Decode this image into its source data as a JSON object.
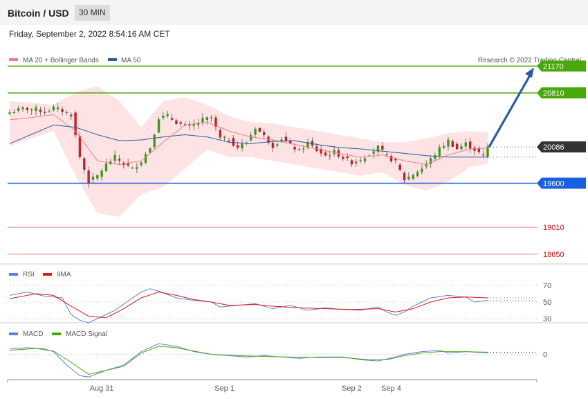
{
  "header": {
    "title": "Bitcoin / USD",
    "interval": "30 MIN",
    "datetime": "Friday, September 2, 2022 8:54:16 AM CET"
  },
  "credit": "Research © 2022 Trading Central",
  "chart_data": [
    {
      "type": "candlestick",
      "legend": [
        {
          "name": "MA 20 + Bollinger Bands",
          "color": "#f08080"
        },
        {
          "name": "MA 50",
          "color": "#2d5aa0"
        }
      ],
      "ylim": [
        18500,
        21350
      ],
      "last_price": "20086",
      "price_levels": [
        {
          "label": "21170",
          "value": 21170,
          "color": "#4aa90a",
          "badge": true
        },
        {
          "label": "20810",
          "value": 20810,
          "color": "#4aa90a",
          "badge": true
        },
        {
          "label": "20086",
          "value": 20086,
          "color": "#333333",
          "badge": true,
          "dotted": true
        },
        {
          "label": "19600",
          "value": 19600,
          "color": "#1a5fe0",
          "badge": true
        },
        {
          "label": "19010",
          "value": 19010,
          "color": "#f08080",
          "badge": false
        },
        {
          "label": "18650",
          "value": 18650,
          "color": "#f08080",
          "badge": false
        }
      ],
      "forecast_arrow": {
        "from": 20086,
        "to": 21170
      },
      "close_path": [
        [
          0,
          20550
        ],
        [
          3,
          20600
        ],
        [
          6,
          20590
        ],
        [
          8,
          20560
        ],
        [
          10,
          20610
        ],
        [
          12,
          20570
        ],
        [
          14,
          20520
        ],
        [
          16,
          19950
        ],
        [
          18,
          19620
        ],
        [
          20,
          19700
        ],
        [
          22,
          19850
        ],
        [
          24,
          19950
        ],
        [
          26,
          19860
        ],
        [
          28,
          19790
        ],
        [
          30,
          19900
        ],
        [
          32,
          20080
        ],
        [
          34,
          20480
        ],
        [
          36,
          20500
        ],
        [
          38,
          20420
        ],
        [
          40,
          20360
        ],
        [
          42,
          20380
        ],
        [
          44,
          20450
        ],
        [
          46,
          20480
        ],
        [
          48,
          20200
        ],
        [
          50,
          20180
        ],
        [
          52,
          20080
        ],
        [
          54,
          20150
        ],
        [
          56,
          20350
        ],
        [
          58,
          20230
        ],
        [
          60,
          20100
        ],
        [
          62,
          20200
        ],
        [
          64,
          20110
        ],
        [
          66,
          20030
        ],
        [
          68,
          20140
        ],
        [
          70,
          20040
        ],
        [
          72,
          19970
        ],
        [
          74,
          20020
        ],
        [
          76,
          19940
        ],
        [
          78,
          19880
        ],
        [
          80,
          19920
        ],
        [
          82,
          20000
        ],
        [
          84,
          20080
        ],
        [
          86,
          19960
        ],
        [
          88,
          19880
        ],
        [
          90,
          19650
        ],
        [
          92,
          19720
        ],
        [
          94,
          19800
        ],
        [
          96,
          19920
        ],
        [
          98,
          20060
        ],
        [
          100,
          20170
        ],
        [
          102,
          20060
        ],
        [
          104,
          20130
        ],
        [
          106,
          20050
        ],
        [
          108,
          19960
        ],
        [
          109,
          20086
        ]
      ],
      "ma20_path": [
        [
          0,
          20450
        ],
        [
          5,
          20480
        ],
        [
          10,
          20520
        ],
        [
          15,
          20300
        ],
        [
          20,
          19900
        ],
        [
          25,
          19850
        ],
        [
          30,
          19900
        ],
        [
          35,
          20150
        ],
        [
          40,
          20380
        ],
        [
          45,
          20420
        ],
        [
          50,
          20300
        ],
        [
          55,
          20220
        ],
        [
          60,
          20180
        ],
        [
          65,
          20120
        ],
        [
          70,
          20060
        ],
        [
          75,
          20000
        ],
        [
          80,
          19950
        ],
        [
          85,
          19980
        ],
        [
          90,
          19900
        ],
        [
          95,
          19850
        ],
        [
          100,
          19980
        ],
        [
          105,
          20060
        ],
        [
          109,
          20070
        ]
      ],
      "ma50_path": [
        [
          0,
          20130
        ],
        [
          10,
          20380
        ],
        [
          15,
          20350
        ],
        [
          20,
          20250
        ],
        [
          25,
          20170
        ],
        [
          30,
          20180
        ],
        [
          35,
          20220
        ],
        [
          40,
          20250
        ],
        [
          45,
          20220
        ],
        [
          50,
          20150
        ],
        [
          55,
          20130
        ],
        [
          60,
          20160
        ],
        [
          65,
          20170
        ],
        [
          70,
          20120
        ],
        [
          75,
          20080
        ],
        [
          80,
          20060
        ],
        [
          85,
          20030
        ],
        [
          90,
          20000
        ],
        [
          95,
          19970
        ],
        [
          100,
          19950
        ],
        [
          105,
          19950
        ],
        [
          109,
          19950
        ]
      ],
      "bb_upper_path": [
        [
          0,
          20700
        ],
        [
          5,
          20680
        ],
        [
          10,
          20650
        ],
        [
          15,
          20820
        ],
        [
          20,
          20900
        ],
        [
          25,
          20700
        ],
        [
          30,
          20350
        ],
        [
          35,
          20700
        ],
        [
          40,
          20750
        ],
        [
          45,
          20650
        ],
        [
          50,
          20500
        ],
        [
          55,
          20420
        ],
        [
          60,
          20400
        ],
        [
          65,
          20350
        ],
        [
          70,
          20300
        ],
        [
          75,
          20250
        ],
        [
          80,
          20200
        ],
        [
          85,
          20150
        ],
        [
          90,
          20150
        ],
        [
          95,
          20200
        ],
        [
          100,
          20270
        ],
        [
          105,
          20300
        ],
        [
          109,
          20280
        ]
      ],
      "bb_lower_path": [
        [
          0,
          20100
        ],
        [
          5,
          20200
        ],
        [
          10,
          20300
        ],
        [
          15,
          19700
        ],
        [
          20,
          19200
        ],
        [
          25,
          19150
        ],
        [
          30,
          19450
        ],
        [
          35,
          19550
        ],
        [
          40,
          19800
        ],
        [
          45,
          20050
        ],
        [
          50,
          19950
        ],
        [
          55,
          19950
        ],
        [
          60,
          19900
        ],
        [
          65,
          19850
        ],
        [
          70,
          19800
        ],
        [
          75,
          19750
        ],
        [
          80,
          19700
        ],
        [
          85,
          19750
        ],
        [
          90,
          19580
        ],
        [
          95,
          19500
        ],
        [
          100,
          19620
        ],
        [
          105,
          19820
        ],
        [
          109,
          19860
        ]
      ]
    },
    {
      "type": "line",
      "legend": [
        {
          "name": "RSI",
          "color": "#5b7fdb"
        },
        {
          "name": "9MA",
          "color": "#e01515"
        }
      ],
      "ylim": [
        20,
        80
      ],
      "tick_labels": [
        "70",
        "50",
        "30"
      ],
      "ticks": [
        70,
        50,
        30
      ],
      "series": [
        {
          "name": "RSI",
          "points": [
            [
              0,
              58
            ],
            [
              4,
              62
            ],
            [
              8,
              57
            ],
            [
              12,
              55
            ],
            [
              14,
              35
            ],
            [
              16,
              28
            ],
            [
              18,
              25
            ],
            [
              20,
              30
            ],
            [
              24,
              40
            ],
            [
              28,
              55
            ],
            [
              30,
              62
            ],
            [
              32,
              66
            ],
            [
              34,
              63
            ],
            [
              38,
              55
            ],
            [
              42,
              52
            ],
            [
              46,
              50
            ],
            [
              48,
              44
            ],
            [
              52,
              46
            ],
            [
              56,
              48
            ],
            [
              60,
              42
            ],
            [
              64,
              46
            ],
            [
              68,
              40
            ],
            [
              72,
              43
            ],
            [
              76,
              41
            ],
            [
              80,
              40
            ],
            [
              84,
              44
            ],
            [
              86,
              38
            ],
            [
              88,
              34
            ],
            [
              90,
              38
            ],
            [
              92,
              45
            ],
            [
              96,
              55
            ],
            [
              100,
              58
            ],
            [
              104,
              56
            ],
            [
              106,
              50
            ],
            [
              109,
              52
            ]
          ]
        },
        {
          "name": "9MA",
          "points": [
            [
              0,
              54
            ],
            [
              6,
              60
            ],
            [
              10,
              58
            ],
            [
              14,
              45
            ],
            [
              18,
              33
            ],
            [
              22,
              31
            ],
            [
              26,
              42
            ],
            [
              30,
              55
            ],
            [
              34,
              62
            ],
            [
              38,
              58
            ],
            [
              42,
              53
            ],
            [
              46,
              50
            ],
            [
              50,
              46
            ],
            [
              56,
              47
            ],
            [
              60,
              45
            ],
            [
              66,
              43
            ],
            [
              72,
              42
            ],
            [
              78,
              41
            ],
            [
              84,
              42
            ],
            [
              88,
              38
            ],
            [
              92,
              42
            ],
            [
              96,
              50
            ],
            [
              100,
              55
            ],
            [
              104,
              56
            ],
            [
              109,
              55
            ]
          ]
        }
      ]
    },
    {
      "type": "line",
      "legend": [
        {
          "name": "MACD",
          "color": "#5b7fdb"
        },
        {
          "name": "MACD Signal",
          "color": "#4aa90a"
        }
      ],
      "ylim": [
        -1,
        1
      ],
      "tick_labels": [
        "0"
      ],
      "ticks": [
        0
      ],
      "series": [
        {
          "name": "MACD",
          "points": [
            [
              0,
              0.2
            ],
            [
              4,
              0.25
            ],
            [
              8,
              0.2
            ],
            [
              10,
              0.1
            ],
            [
              13,
              -0.4
            ],
            [
              16,
              -0.8
            ],
            [
              18,
              -0.85
            ],
            [
              22,
              -0.6
            ],
            [
              26,
              -0.4
            ],
            [
              30,
              0.1
            ],
            [
              34,
              0.4
            ],
            [
              38,
              0.3
            ],
            [
              42,
              0.1
            ],
            [
              46,
              0
            ],
            [
              50,
              -0.05
            ],
            [
              54,
              -0.1
            ],
            [
              58,
              -0.05
            ],
            [
              62,
              -0.1
            ],
            [
              66,
              -0.15
            ],
            [
              70,
              -0.1
            ],
            [
              76,
              -0.1
            ],
            [
              80,
              -0.2
            ],
            [
              84,
              -0.25
            ],
            [
              88,
              -0.1
            ],
            [
              90,
              0
            ],
            [
              94,
              0.1
            ],
            [
              98,
              0.15
            ],
            [
              100,
              0.05
            ],
            [
              104,
              0.1
            ],
            [
              109,
              0.05
            ]
          ]
        },
        {
          "name": "MACD Signal",
          "points": [
            [
              0,
              0.15
            ],
            [
              6,
              0.22
            ],
            [
              10,
              0.12
            ],
            [
              14,
              -0.3
            ],
            [
              18,
              -0.75
            ],
            [
              22,
              -0.6
            ],
            [
              26,
              -0.45
            ],
            [
              30,
              0.05
            ],
            [
              34,
              0.3
            ],
            [
              38,
              0.25
            ],
            [
              42,
              0.12
            ],
            [
              46,
              0
            ],
            [
              52,
              -0.05
            ],
            [
              58,
              -0.08
            ],
            [
              64,
              -0.1
            ],
            [
              70,
              -0.12
            ],
            [
              76,
              -0.12
            ],
            [
              82,
              -0.2
            ],
            [
              86,
              -0.2
            ],
            [
              90,
              -0.05
            ],
            [
              94,
              0.05
            ],
            [
              98,
              0.1
            ],
            [
              104,
              0.1
            ],
            [
              109,
              0.08
            ]
          ]
        }
      ]
    }
  ],
  "x_axis": {
    "labels": [
      {
        "text": "Aug 31",
        "at": 21
      },
      {
        "text": "Sep 1",
        "at": 49
      },
      {
        "text": "Sep 2",
        "at": 78
      },
      {
        "text": "Sep 4",
        "at": 87
      }
    ]
  }
}
